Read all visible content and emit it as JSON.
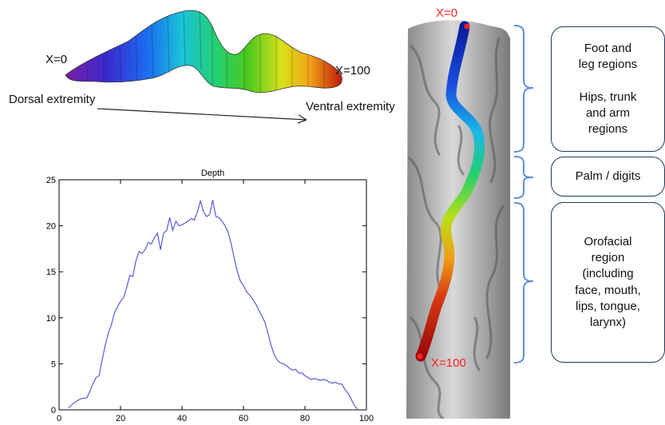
{
  "sulcus_model": {
    "start_label": "X=0",
    "end_label": "X=100",
    "dorsal_label": "Dorsal extremity",
    "ventral_label": "Ventral extremity"
  },
  "brain_view": {
    "top_label": "X=0",
    "bottom_label": "X=100"
  },
  "regions": [
    {
      "text": "Foot and\nleg regions\n\nHips, trunk\nand arm\nregions"
    },
    {
      "text": "Palm / digits"
    },
    {
      "text": "Orofacial\nregion\n(including\nface, mouth,\nlips, tongue,\nlarynx)"
    }
  ],
  "chart_data": {
    "type": "line",
    "title": "Depth",
    "xlabel": "",
    "ylabel": "",
    "xlim": [
      0,
      100
    ],
    "ylim": [
      0,
      25
    ],
    "xticks": [
      "0",
      "20",
      "40",
      "60",
      "80",
      "100"
    ],
    "yticks": [
      "0",
      "5",
      "10",
      "15",
      "20",
      "25"
    ],
    "series": [
      {
        "color": "#5a5ad8",
        "x": [
          3,
          5,
          7,
          9,
          10,
          11,
          12,
          13,
          14,
          15,
          16,
          17,
          18,
          19,
          20,
          21,
          22,
          23,
          24,
          25,
          26,
          27,
          28,
          29,
          30,
          31,
          32,
          33,
          34,
          35,
          36,
          37,
          38,
          39,
          40,
          41,
          42,
          43,
          44,
          45,
          46,
          47,
          48,
          49,
          50,
          51,
          52,
          53,
          54,
          55,
          56,
          57,
          58,
          59,
          60,
          61,
          62,
          63,
          64,
          65,
          66,
          67,
          68,
          69,
          70,
          71,
          72,
          73,
          74,
          75,
          76,
          77,
          78,
          79,
          80,
          81,
          82,
          83,
          84,
          85,
          86,
          87,
          88,
          89,
          90,
          91,
          92,
          93,
          94,
          95,
          96,
          97
        ],
        "y": [
          0.2,
          0.8,
          1.2,
          1.3,
          2.0,
          2.8,
          3.5,
          3.7,
          5.4,
          7.0,
          8.3,
          9.2,
          10.5,
          11.2,
          11.8,
          12.2,
          13.3,
          14.6,
          14.5,
          16.2,
          17.2,
          17.0,
          17.4,
          18.2,
          18.0,
          18.7,
          19.2,
          17.4,
          19.2,
          19.5,
          20.9,
          19.5,
          20.5,
          20.0,
          20.1,
          20.3,
          20.5,
          20.8,
          20.6,
          21.5,
          22.7,
          21.5,
          21.0,
          21.2,
          22.8,
          21.0,
          20.9,
          20.5,
          20.0,
          19.3,
          18.0,
          16.5,
          15.0,
          14.0,
          13.5,
          12.8,
          12.5,
          12.0,
          11.5,
          10.8,
          10.2,
          9.5,
          8.3,
          7.0,
          6.0,
          5.4,
          5.1,
          5.0,
          4.8,
          4.5,
          4.3,
          4.4,
          4.0,
          4.0,
          3.7,
          3.5,
          3.3,
          3.4,
          3.3,
          3.2,
          3.3,
          3.2,
          3.0,
          2.9,
          3.0,
          2.8,
          2.8,
          2.2,
          1.8,
          1.2,
          0.5,
          0.1
        ]
      }
    ]
  },
  "colors": {
    "brace": "#5b8fd6",
    "box_border": "#1f3b5a",
    "marker": "#ff2020",
    "line": "#5a5ad8"
  }
}
